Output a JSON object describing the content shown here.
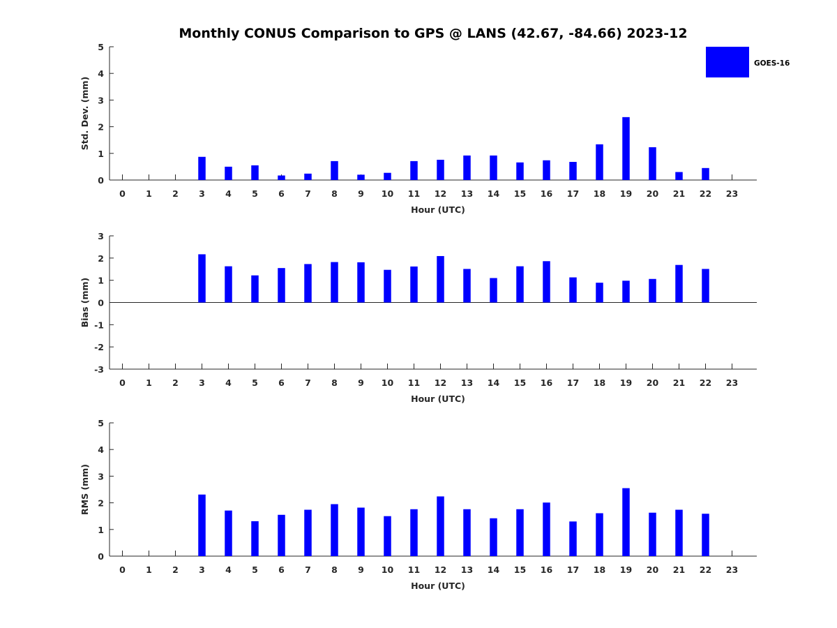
{
  "chart_data": {
    "title": "Monthly CONUS Comparison to GPS @ LANS (42.67, -84.66) 2023-12",
    "legend": {
      "label": "GOES-16",
      "color": "#0000ff",
      "placement": "top-right"
    },
    "bar_color": "#0000ff",
    "panels": [
      {
        "id": "std-dev",
        "type": "bar",
        "ylabel": "Std. Dev. (mm)",
        "xlabel": "Hour (UTC)",
        "ylim": [
          0,
          5
        ],
        "yticks": [
          "0",
          "1",
          "2",
          "3",
          "4",
          "5"
        ],
        "categories": [
          "0",
          "1",
          "2",
          "3",
          "4",
          "5",
          "6",
          "7",
          "8",
          "9",
          "10",
          "11",
          "12",
          "13",
          "14",
          "15",
          "16",
          "17",
          "18",
          "19",
          "20",
          "21",
          "22",
          "23"
        ],
        "series": [
          {
            "name": "GOES-16",
            "values": [
              null,
              null,
              null,
              0.87,
              0.5,
              0.55,
              0.17,
              0.24,
              0.71,
              0.2,
              0.27,
              0.71,
              0.76,
              0.92,
              0.92,
              0.66,
              0.74,
              0.68,
              1.34,
              2.36,
              1.23,
              0.3,
              0.45,
              null
            ]
          }
        ]
      },
      {
        "id": "bias",
        "type": "bar",
        "ylabel": "Bias (mm)",
        "xlabel": "Hour (UTC)",
        "ylim": [
          -3,
          3
        ],
        "yticks": [
          "-3",
          "-2",
          "-1",
          "0",
          "1",
          "2",
          "3"
        ],
        "zero_line": true,
        "categories": [
          "0",
          "1",
          "2",
          "3",
          "4",
          "5",
          "6",
          "7",
          "8",
          "9",
          "10",
          "11",
          "12",
          "13",
          "14",
          "15",
          "16",
          "17",
          "18",
          "19",
          "20",
          "21",
          "22",
          "23"
        ],
        "series": [
          {
            "name": "GOES-16",
            "values": [
              null,
              null,
              null,
              2.17,
              1.63,
              1.22,
              1.55,
              1.73,
              1.82,
              1.81,
              1.47,
              1.62,
              2.09,
              1.51,
              1.1,
              1.63,
              1.86,
              1.13,
              0.89,
              0.98,
              1.06,
              1.69,
              1.51,
              null
            ]
          }
        ]
      },
      {
        "id": "rms",
        "type": "bar",
        "ylabel": "RMS (mm)",
        "xlabel": "Hour (UTC)",
        "ylim": [
          0,
          5
        ],
        "yticks": [
          "0",
          "1",
          "2",
          "3",
          "4",
          "5"
        ],
        "categories": [
          "0",
          "1",
          "2",
          "3",
          "4",
          "5",
          "6",
          "7",
          "8",
          "9",
          "10",
          "11",
          "12",
          "13",
          "14",
          "15",
          "16",
          "17",
          "18",
          "19",
          "20",
          "21",
          "22",
          "23"
        ],
        "series": [
          {
            "name": "GOES-16",
            "values": [
              null,
              null,
              null,
              2.31,
              1.71,
              1.31,
              1.55,
              1.74,
              1.95,
              1.82,
              1.5,
              1.76,
              2.24,
              1.76,
              1.42,
              1.76,
              2.01,
              1.3,
              1.61,
              2.55,
              1.63,
              1.74,
              1.59,
              null
            ]
          }
        ]
      }
    ]
  }
}
